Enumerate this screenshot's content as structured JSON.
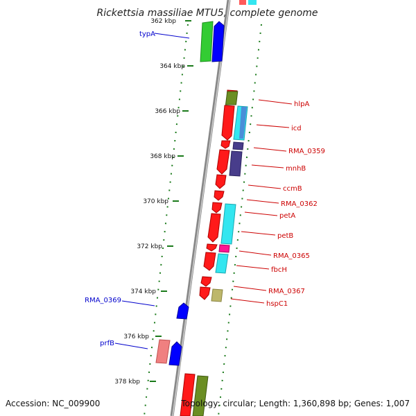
{
  "title": "Rickettsia massiliae MTU5, complete genome",
  "footer": {
    "accession": "Accession: NC_009900",
    "summary": "Topology: circular; Length: 1,360,898 bp; Genes: 1,007"
  },
  "colors": {
    "label_forward": "#0000cc",
    "label_reverse": "#cc0000",
    "tick": "#1a7a1a",
    "backbone": "#777777"
  },
  "ticks": [
    {
      "label": "362 kbp"
    },
    {
      "label": "364 kbp"
    },
    {
      "label": "366 kbp"
    },
    {
      "label": "368 kbp"
    },
    {
      "label": "370 kbp"
    },
    {
      "label": "372 kbp"
    },
    {
      "label": "374 kbp"
    },
    {
      "label": "376 kbp"
    },
    {
      "label": "378 kbp"
    }
  ],
  "genes": [
    {
      "name": "typA",
      "strand": "forward"
    },
    {
      "name": "hlpA",
      "strand": "reverse"
    },
    {
      "name": "icd",
      "strand": "reverse"
    },
    {
      "name": "RMA_0359",
      "strand": "reverse"
    },
    {
      "name": "mnhB",
      "strand": "reverse"
    },
    {
      "name": "ccmB",
      "strand": "reverse"
    },
    {
      "name": "RMA_0362",
      "strand": "reverse"
    },
    {
      "name": "petA",
      "strand": "reverse"
    },
    {
      "name": "petB",
      "strand": "reverse"
    },
    {
      "name": "RMA_0365",
      "strand": "reverse"
    },
    {
      "name": "fbcH",
      "strand": "reverse"
    },
    {
      "name": "RMA_0367",
      "strand": "reverse"
    },
    {
      "name": "hspC1",
      "strand": "reverse"
    },
    {
      "name": "RMA_0369",
      "strand": "forward"
    },
    {
      "name": "prfB",
      "strand": "forward"
    }
  ]
}
